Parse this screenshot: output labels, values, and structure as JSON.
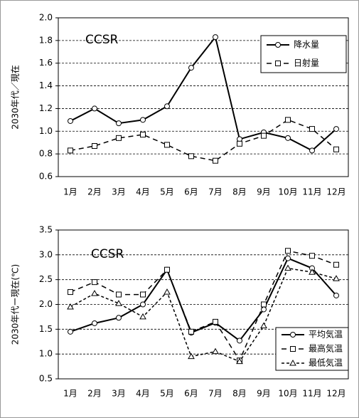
{
  "chart_data": [
    {
      "type": "line",
      "annotation": "CCSR",
      "y_label": "2030年代／現在",
      "categories": [
        "1月",
        "2月",
        "3月",
        "4月",
        "5月",
        "6月",
        "7月",
        "8月",
        "9月",
        "10月",
        "11月",
        "12月"
      ],
      "ylim": [
        0.6,
        2.0
      ],
      "yticks": [
        0.6,
        0.8,
        {
          "value": 1.0,
          "label": "1.0"
        },
        1.2,
        1.4,
        1.6,
        1.8,
        {
          "value": 2.0,
          "label": "2.0"
        }
      ],
      "grid": true,
      "series": [
        {
          "name": "降水量",
          "color": "#000000",
          "dash": "solid",
          "marker": "circle",
          "values": [
            1.09,
            1.2,
            1.07,
            1.1,
            1.22,
            1.56,
            1.83,
            0.93,
            0.99,
            0.94,
            0.83,
            1.02
          ]
        },
        {
          "name": "日射量",
          "color": "#000000",
          "dash": "dashed",
          "marker": "square",
          "values": [
            0.83,
            0.87,
            0.94,
            0.97,
            0.88,
            0.78,
            0.74,
            0.89,
            0.96,
            1.1,
            1.02,
            0.84
          ]
        }
      ]
    },
    {
      "type": "line",
      "annotation": "CCSR",
      "y_label": "2030年代ー現在(℃)",
      "categories": [
        "1月",
        "2月",
        "3月",
        "4月",
        "5月",
        "6月",
        "7月",
        "8月",
        "9月",
        "10月",
        "11月",
        "12月"
      ],
      "ylim": [
        0.5,
        3.5
      ],
      "yticks": [
        0.5,
        {
          "value": 1.0,
          "label": "1.0"
        },
        1.5,
        {
          "value": 2.0,
          "label": "2.0"
        },
        2.5,
        {
          "value": 3.0,
          "label": "3.0"
        },
        3.5
      ],
      "grid": true,
      "series": [
        {
          "name": "平均気温",
          "color": "#000000",
          "dash": "solid",
          "marker": "circle",
          "values": [
            1.45,
            1.62,
            1.73,
            2.0,
            2.7,
            1.43,
            1.63,
            1.27,
            1.9,
            2.93,
            2.73,
            2.18
          ]
        },
        {
          "name": "最高気温",
          "color": "#000000",
          "dash": "dashed",
          "marker": "square",
          "values": [
            2.25,
            2.45,
            2.2,
            2.2,
            2.7,
            1.45,
            1.65,
            0.87,
            2.0,
            3.08,
            2.98,
            2.8
          ]
        },
        {
          "name": "最低気温",
          "color": "#000000",
          "dash": "dotted",
          "marker": "triangle",
          "values": [
            1.95,
            2.22,
            2.02,
            1.75,
            2.25,
            0.95,
            1.05,
            0.85,
            1.57,
            2.73,
            2.65,
            2.52
          ]
        }
      ]
    }
  ]
}
